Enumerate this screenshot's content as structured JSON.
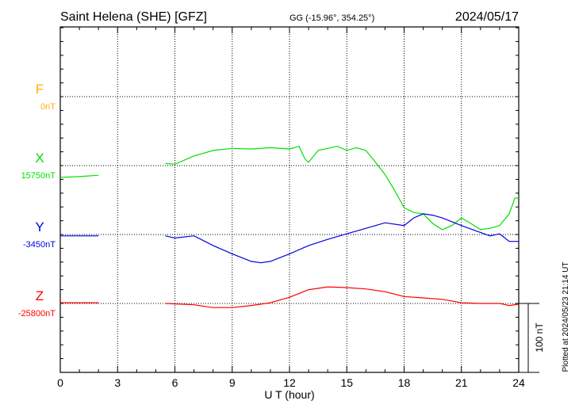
{
  "header": {
    "station": "Saint Helena (SHE)  [GFZ]",
    "coords": "GG (-15.96°, 354.25°)",
    "date": "2024/05/17"
  },
  "footer": {
    "plotted": "Plotted at 2024/05/23 21:14 UT",
    "scale_label": "100 nT"
  },
  "chart_data": {
    "type": "line",
    "xlabel": "U T (hour)",
    "xlim": [
      0,
      24
    ],
    "xticks": [
      "0",
      "3",
      "6",
      "9",
      "12",
      "15",
      "18",
      "21",
      "24"
    ],
    "scale_nT": 100,
    "colors": {
      "F": "#ffb000",
      "X": "#00e000",
      "Y": "#0000e0",
      "Z": "#ff0000"
    },
    "series": [
      {
        "name": "F",
        "baseline_label": "0nT",
        "baseline": 0,
        "segments": []
      },
      {
        "name": "X",
        "baseline_label": "15750nT",
        "baseline": 15750,
        "segments": [
          [
            [
              0,
              -17
            ],
            [
              1,
              -16
            ],
            [
              2,
              -14
            ]
          ],
          [
            [
              5.5,
              3
            ],
            [
              6,
              2
            ],
            [
              7,
              14
            ],
            [
              8,
              22
            ],
            [
              9,
              25
            ],
            [
              10,
              24
            ],
            [
              11,
              26
            ],
            [
              12,
              24
            ],
            [
              12.5,
              28
            ],
            [
              12.8,
              10
            ],
            [
              13,
              5
            ],
            [
              13.5,
              22
            ],
            [
              14,
              25
            ],
            [
              14.5,
              28
            ],
            [
              15,
              22
            ],
            [
              15.5,
              26
            ],
            [
              16,
              22
            ],
            [
              16.5,
              5
            ],
            [
              17,
              -13
            ],
            [
              17.5,
              -36
            ],
            [
              18,
              -61
            ],
            [
              18.5,
              -68
            ],
            [
              19,
              -70
            ],
            [
              19.5,
              -84
            ],
            [
              20,
              -93
            ],
            [
              20.5,
              -87
            ],
            [
              21,
              -76
            ],
            [
              21.5,
              -84
            ],
            [
              22,
              -93
            ],
            [
              22.5,
              -91
            ],
            [
              23,
              -87
            ],
            [
              23.5,
              -70
            ],
            [
              23.8,
              -47
            ],
            [
              24,
              -47
            ]
          ]
        ]
      },
      {
        "name": "Y",
        "baseline_label": "-3450nT",
        "baseline": -3450,
        "segments": [
          [
            [
              0,
              -2
            ],
            [
              1,
              -2
            ],
            [
              2,
              -2
            ]
          ],
          [
            [
              5.5,
              -2
            ],
            [
              6,
              -5
            ],
            [
              7,
              -2
            ],
            [
              8,
              -16
            ],
            [
              9,
              -28
            ],
            [
              10,
              -39
            ],
            [
              10.5,
              -41
            ],
            [
              11,
              -39
            ],
            [
              12,
              -28
            ],
            [
              13,
              -16
            ],
            [
              14,
              -7
            ],
            [
              15,
              1
            ],
            [
              16,
              9
            ],
            [
              17,
              17
            ],
            [
              18,
              13
            ],
            [
              18.5,
              24
            ],
            [
              19,
              30
            ],
            [
              19.5,
              28
            ],
            [
              20,
              24
            ],
            [
              21,
              13
            ],
            [
              22,
              3
            ],
            [
              22.5,
              -2
            ],
            [
              23,
              1
            ],
            [
              23.5,
              -10
            ],
            [
              24,
              -10
            ]
          ]
        ]
      },
      {
        "name": "Z",
        "baseline_label": "-25800nT",
        "baseline": -25800,
        "segments": [
          [
            [
              0,
              1
            ],
            [
              1,
              1
            ],
            [
              2,
              1
            ]
          ],
          [
            [
              5.5,
              0
            ],
            [
              7,
              -2
            ],
            [
              8,
              -6
            ],
            [
              9,
              -6
            ],
            [
              10,
              -3
            ],
            [
              11,
              1
            ],
            [
              12,
              9
            ],
            [
              13,
              20
            ],
            [
              14,
              24
            ],
            [
              15,
              23
            ],
            [
              16,
              21
            ],
            [
              17,
              17
            ],
            [
              18,
              10
            ],
            [
              19,
              8
            ],
            [
              20,
              6
            ],
            [
              21,
              1
            ],
            [
              22,
              0
            ],
            [
              23,
              0
            ],
            [
              23.5,
              -3
            ],
            [
              24,
              -1
            ]
          ]
        ]
      }
    ]
  }
}
